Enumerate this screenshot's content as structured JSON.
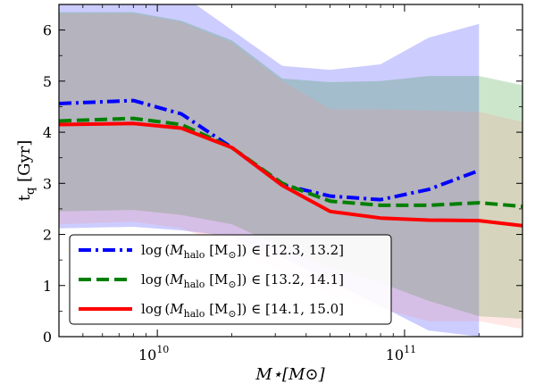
{
  "chart_data": {
    "type": "line",
    "xlabel": "M⋆[M⊙]",
    "ylabel": "t_q [Gyr]",
    "xscale": "log",
    "xlim": [
      4000000000,
      300000000000
    ],
    "ylim": [
      0,
      6.5
    ],
    "yticks": [
      0,
      1,
      2,
      3,
      4,
      5,
      6
    ],
    "xticks_major": [
      10000000000,
      100000000000
    ],
    "xtick_labels": [
      {
        "base": "10",
        "exp": "10"
      },
      {
        "base": "10",
        "exp": "11"
      }
    ],
    "legend_placement": "bottom-left",
    "grid": false,
    "series": [
      {
        "name": "log (M_halo [M⊙]) ∈ [12.3, 13.2]",
        "legend_range": "∈ [12.3, 13.2]",
        "color": "#0000ff",
        "line_style": "dashdot",
        "band_color": "#0000ff",
        "x": [
          4000000000,
          8000000000,
          12500000000,
          20000000000,
          32000000000,
          50000000000,
          80000000000,
          125000000000,
          200000000000
        ],
        "y": [
          4.56,
          4.62,
          4.36,
          3.7,
          2.97,
          2.75,
          2.68,
          2.88,
          3.25
        ],
        "upper": [
          6.7,
          6.7,
          6.7,
          6.0,
          5.3,
          5.22,
          5.33,
          5.85,
          6.12
        ],
        "lower": [
          2.12,
          2.15,
          2.08,
          1.96,
          1.55,
          1.1,
          0.6,
          0.12,
          0.0
        ]
      },
      {
        "name": "log (M_halo [M⊙]) ∈ [13.2, 14.1]",
        "legend_range": "∈ [13.2, 14.1]",
        "color": "#007f00",
        "line_style": "dashed",
        "band_color": "#008000",
        "x": [
          4000000000,
          8000000000,
          12500000000,
          20000000000,
          32000000000,
          50000000000,
          80000000000,
          125000000000,
          200000000000,
          300000000000
        ],
        "y": [
          4.22,
          4.27,
          4.15,
          3.7,
          3.0,
          2.65,
          2.57,
          2.57,
          2.62,
          2.55
        ],
        "upper": [
          6.35,
          6.35,
          6.18,
          5.8,
          5.05,
          4.98,
          5.0,
          5.1,
          5.1,
          4.92
        ],
        "lower": [
          2.45,
          2.48,
          2.38,
          2.2,
          1.75,
          1.35,
          1.05,
          0.7,
          0.4,
          0.35
        ]
      },
      {
        "name": "log (M_halo [M⊙]) ∈ [14.1, 15.0]",
        "legend_range": "∈ [14.1, 15.0]",
        "color": "#ff0000",
        "line_style": "solid",
        "band_color": "#ff8a80",
        "x": [
          4000000000,
          8000000000,
          12500000000,
          20000000000,
          32000000000,
          50000000000,
          80000000000,
          125000000000,
          200000000000,
          300000000000
        ],
        "y": [
          4.15,
          4.17,
          4.08,
          3.7,
          2.96,
          2.45,
          2.32,
          2.28,
          2.27,
          2.17
        ],
        "upper": [
          6.32,
          6.32,
          6.15,
          5.75,
          5.0,
          4.45,
          4.45,
          4.42,
          4.4,
          4.2
        ],
        "lower": [
          2.2,
          2.25,
          2.12,
          1.75,
          1.25,
          0.8,
          0.55,
          0.3,
          0.3,
          0.15
        ]
      }
    ]
  }
}
